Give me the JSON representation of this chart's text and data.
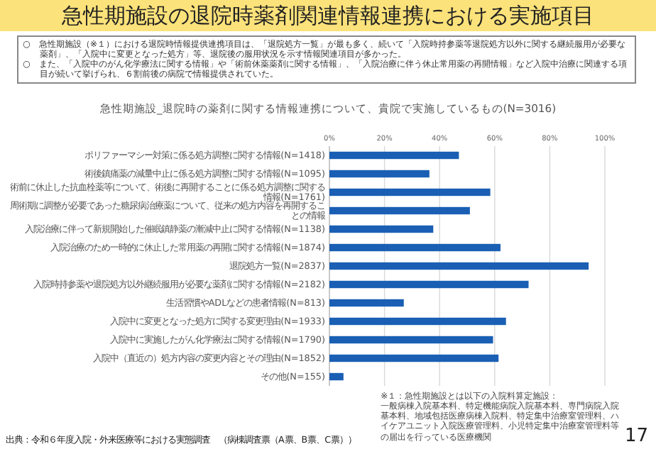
{
  "chart_data": {
    "type": "bar",
    "orientation": "horizontal",
    "title": "急性期施設の退院時薬剤関連情報連携における実施項目",
    "subtitle": "急性期施設_退院時の薬剤に関する情報連携について、貴院で実施しているもの(N=3016)",
    "categories": [
      "ポリファーマシー対策に係る処方調整に関する情報(N=1418)",
      "術後鎮痛薬の減量中止に係る処方調整に関する情報(N=1095)",
      "術前に休止した抗血栓薬等について、術後に再開することに係る処方調整に関する情報(N=1761)",
      "周術期に調整が必要であった糖尿病治療薬について、従来の処方内容を再開することの情報",
      "入院治療に伴って新規開始した催眠鎮静薬の漸減中止に関する情報(N=1138)",
      "入院治療のため一時的に休止した常用薬の再開に関する情報(N=1874)",
      "退院処方一覧(N=2837)",
      "入院時持参薬や退院処方以外継続服用が必要な薬剤に関する情報(N=2182)",
      "生活習慣やADLなどの患者情報(N=813)",
      "入院中に変更となった処方に関する変更理由(N=1933)",
      "入院中に実施したがん化学療法に関する情報(N=1790)",
      "入院中（直近の）処方内容の変更内容とその理由(N=1852)",
      "その他(N=155)"
    ],
    "values": [
      47.0,
      36.3,
      58.4,
      51.0,
      37.7,
      62.1,
      94.1,
      72.3,
      27.0,
      64.1,
      59.4,
      61.4,
      5.1
    ],
    "color": "#1a5fb4",
    "xlim": [
      0,
      100
    ],
    "xticks": [
      {
        "value": 0,
        "label": "0%"
      },
      {
        "value": 20,
        "label": "20%"
      },
      {
        "value": 40,
        "label": "40%"
      },
      {
        "value": 60,
        "label": "60%"
      },
      {
        "value": 80,
        "label": "80%"
      },
      {
        "value": 100,
        "label": "100%"
      }
    ],
    "grid": "x",
    "annotations": [
      "○　急性期施設（※１）における退院時情報提供連携項目は、「退院処方一覧」が最も多く、続いて「入院時持参薬等退院処方以外に関する継続服用が必要な薬剤」、「入院中に変更となった処方」等、退院後の服用状況を示す情報関連項目が多かった。",
      "○　また、「入院中のがん化学療法に関する情報」や「術前休薬薬剤に関する情報」、「入院治療に伴う休止常用薬の再開情報」など入院中治療に関連する項目が続いて挙げられ、６割前後の病院で情報提供されていた。",
      "※１：急性期施設とは以下の入院料算定施設：",
      "一般病棟入院基本料、特定機能病院入院基本料、専門病院入院基本料、地域包括医療病棟入院料、特定集中治療室管理料、ハイケアユニット入院医療管理料、小児特定集中治療室管理料等の届出を行っている医療機関",
      "出典：令和６年度入院・外来医療等における実態調査　（病棟調査票（A票、B票、C票））",
      "17"
    ]
  }
}
